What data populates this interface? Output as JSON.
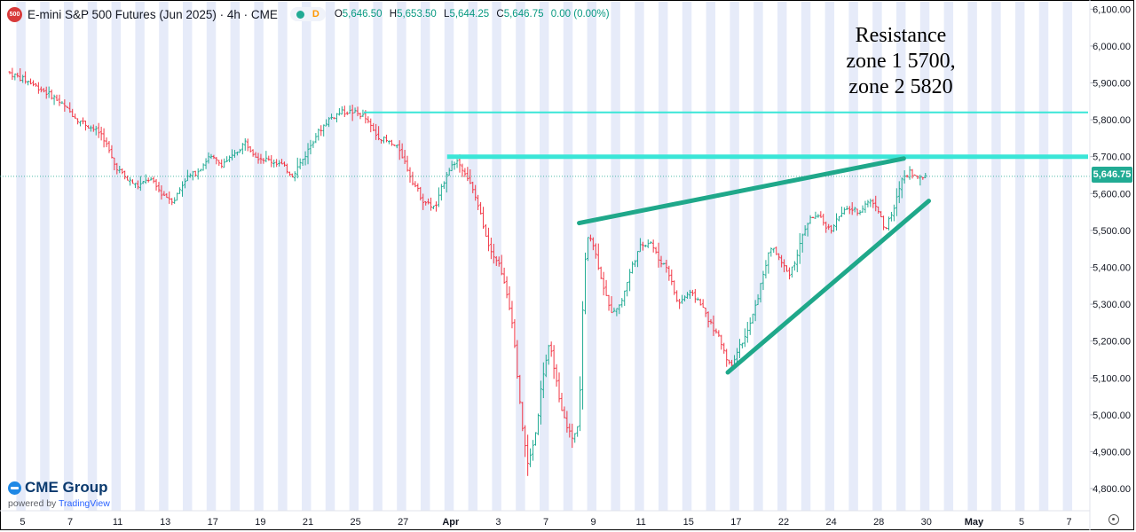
{
  "header": {
    "symbol_badge": "500",
    "title": "E-mini S&P 500 Futures (Jun 2025) · 4h · CME",
    "badge": "D",
    "ohlc": [
      {
        "k": "O",
        "v": "5,646.50"
      },
      {
        "k": "H",
        "v": "5,653.50"
      },
      {
        "k": "L",
        "v": "5,644.25"
      },
      {
        "k": "C",
        "v": "5,646.75"
      },
      {
        "k": "",
        "v": "0.00 (0.00%)"
      }
    ]
  },
  "annotation": [
    "Resistance",
    "zone 1 5700,",
    "zone 2 5820"
  ],
  "last_price_label": "5,646.75",
  "brand": {
    "name": "CME Group",
    "powered_prefix": "powered by",
    "powered_name": "TradingView"
  },
  "colors": {
    "up": "#22ab94",
    "down": "#f23645",
    "band": "#e6ebf9",
    "resistance": "#3ae6d7",
    "trend": "#1fa88a"
  },
  "chart_data": {
    "type": "candlestick",
    "title": "E-mini S&P 500 Futures (Jun 2025) · 4h · CME",
    "ylim": [
      4740,
      6120
    ],
    "y_ticks": [
      4800,
      4900,
      5000,
      5100,
      5200,
      5300,
      5400,
      5500,
      5600,
      5700,
      5800,
      5900,
      6000,
      6100
    ],
    "y_tick_labels": [
      "4,800.00",
      "4,900.00",
      "5,000.00",
      "5,100.00",
      "5,200.00",
      "5,300.00",
      "5,400.00",
      "5,500.00",
      "5,600.00",
      "5,700.00",
      "5,800.00",
      "5,900.00",
      "6,000.00",
      "6,100.00"
    ],
    "x_ticks": [
      {
        "label": "5",
        "session": 1
      },
      {
        "label": "7",
        "session": 5
      },
      {
        "label": "11",
        "session": 9
      },
      {
        "label": "13",
        "session": 13
      },
      {
        "label": "17",
        "session": 17
      },
      {
        "label": "19",
        "session": 21
      },
      {
        "label": "21",
        "session": 25
      },
      {
        "label": "25",
        "session": 29
      },
      {
        "label": "27",
        "session": 33
      },
      {
        "label": "Apr",
        "session": 37,
        "bold": true
      },
      {
        "label": "3",
        "session": 41
      },
      {
        "label": "7",
        "session": 45
      },
      {
        "label": "9",
        "session": 49
      },
      {
        "label": "11",
        "session": 53
      },
      {
        "label": "15",
        "session": 57
      },
      {
        "label": "17",
        "session": 61
      },
      {
        "label": "22",
        "session": 65
      },
      {
        "label": "24",
        "session": 69
      },
      {
        "label": "28",
        "session": 73
      },
      {
        "label": "30",
        "session": 77
      },
      {
        "label": "May",
        "session": 81,
        "bold": true
      },
      {
        "label": "5",
        "session": 85
      },
      {
        "label": "7",
        "session": 89
      }
    ],
    "sessions_total": 91,
    "last_price": 5646.75,
    "path": [
      [
        0,
        5930
      ],
      [
        2,
        5900
      ],
      [
        4,
        5860
      ],
      [
        6,
        5800
      ],
      [
        8,
        5760
      ],
      [
        9,
        5680
      ],
      [
        10,
        5640
      ],
      [
        11,
        5620
      ],
      [
        12,
        5640
      ],
      [
        13,
        5600
      ],
      [
        14,
        5580
      ],
      [
        15,
        5640
      ],
      [
        16,
        5660
      ],
      [
        17,
        5700
      ],
      [
        18,
        5680
      ],
      [
        19,
        5700
      ],
      [
        20,
        5740
      ],
      [
        21,
        5700
      ],
      [
        22,
        5690
      ],
      [
        23,
        5680
      ],
      [
        24,
        5650
      ],
      [
        25,
        5700
      ],
      [
        26,
        5760
      ],
      [
        27,
        5800
      ],
      [
        28,
        5820
      ],
      [
        29,
        5822
      ],
      [
        30,
        5810
      ],
      [
        31,
        5760
      ],
      [
        32,
        5740
      ],
      [
        33,
        5720
      ],
      [
        34,
        5640
      ],
      [
        35,
        5580
      ],
      [
        36,
        5560
      ],
      [
        37,
        5660
      ],
      [
        37.8,
        5690
      ],
      [
        38.5,
        5660
      ],
      [
        39.5,
        5580
      ],
      [
        40.5,
        5460
      ],
      [
        41.5,
        5400
      ],
      [
        42.5,
        5250
      ],
      [
        43.2,
        5000
      ],
      [
        43.8,
        4860
      ],
      [
        44.5,
        4960
      ],
      [
        45,
        5100
      ],
      [
        45.6,
        5190
      ],
      [
        46,
        5130
      ],
      [
        46.5,
        5020
      ],
      [
        47.2,
        4960
      ],
      [
        47.6,
        4930
      ],
      [
        48.1,
        4990
      ],
      [
        48.5,
        5380
      ],
      [
        48.9,
        5500
      ],
      [
        49.3,
        5460
      ],
      [
        49.9,
        5380
      ],
      [
        50.7,
        5280
      ],
      [
        51.6,
        5300
      ],
      [
        52.5,
        5400
      ],
      [
        53.3,
        5460
      ],
      [
        54.1,
        5470
      ],
      [
        54.8,
        5420
      ],
      [
        55.5,
        5400
      ],
      [
        56.4,
        5300
      ],
      [
        57.3,
        5330
      ],
      [
        58.2,
        5310
      ],
      [
        59.1,
        5250
      ],
      [
        60,
        5200
      ],
      [
        60.8,
        5130
      ],
      [
        61.5,
        5180
      ],
      [
        62.2,
        5220
      ],
      [
        63,
        5300
      ],
      [
        63.7,
        5400
      ],
      [
        64.3,
        5460
      ],
      [
        65,
        5420
      ],
      [
        65.7,
        5380
      ],
      [
        66.3,
        5420
      ],
      [
        67,
        5500
      ],
      [
        67.7,
        5540
      ],
      [
        68.4,
        5530
      ],
      [
        69.2,
        5500
      ],
      [
        70,
        5540
      ],
      [
        70.8,
        5560
      ],
      [
        71.6,
        5550
      ],
      [
        72.4,
        5580
      ],
      [
        73.1,
        5570
      ],
      [
        73.8,
        5500
      ],
      [
        74.6,
        5560
      ],
      [
        75.2,
        5640
      ],
      [
        75.9,
        5660
      ],
      [
        76.6,
        5640
      ],
      [
        77.3,
        5650
      ]
    ],
    "lines": [
      {
        "kind": "resistance",
        "price": 5820,
        "from_session": 30,
        "to_session": 91,
        "label": "zone 2"
      },
      {
        "kind": "resistance",
        "price": 5700,
        "from_session": 37,
        "to_session": 91,
        "label": "zone 1"
      },
      {
        "kind": "trendline",
        "from": [
          48.1,
          5520
        ],
        "to": [
          75.4,
          5695
        ]
      },
      {
        "kind": "trendline",
        "from": [
          60.6,
          5115
        ],
        "to": [
          77.5,
          5580
        ]
      }
    ]
  }
}
